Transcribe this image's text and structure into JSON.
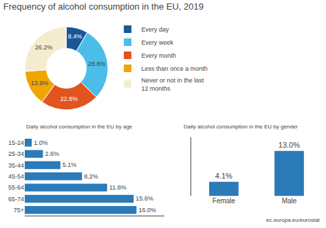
{
  "chart_data": [
    {
      "type": "pie",
      "title": "Frequency of alcohol consumption in the EU, 2019",
      "categories": [
        "Every day",
        "Every week",
        "Every month",
        "Less than once a month",
        "Never or not in the last\n12 months"
      ],
      "values": [
        8.4,
        28.8,
        22.8,
        13.9,
        26.2
      ],
      "value_labels": [
        "8.4%",
        "28.8%",
        "22.8%",
        "13.9%",
        "26.2%"
      ],
      "data_labels": true,
      "colors": [
        "#1a5799",
        "#4bbde8",
        "#e2541e",
        "#f0a500",
        "#f5ecd0"
      ],
      "legend": "right"
    },
    {
      "type": "bar",
      "title": "Daily alcohol consumption in the EU by age",
      "orientation": "horizontal",
      "categories": [
        "15-24",
        "25-34",
        "35-44",
        "45-54",
        "55-64",
        "65-74",
        "75+"
      ],
      "values": [
        1.0,
        2.6,
        5.1,
        8.2,
        11.8,
        15.6,
        16.0
      ],
      "value_labels": [
        "1.0%",
        "2.6%",
        "5.1%",
        "8.2%",
        "11.8%",
        "15.6%",
        "16.0%"
      ],
      "data_labels": true,
      "color": "#2b7bb9",
      "xlim": [
        0,
        20
      ],
      "tick_labels": "y"
    },
    {
      "type": "bar",
      "title": "Daily alcohol consumption in the EU by gender",
      "categories": [
        "Female",
        "Male"
      ],
      "values": [
        4.1,
        13.0
      ],
      "value_labels": [
        "4.1%",
        "13.0%"
      ],
      "data_labels": true,
      "color": "#2b7bb9",
      "ylim": [
        0,
        17
      ],
      "tick_labels": "x",
      "annotations": [
        "ec.europa.eu/eurostat"
      ]
    }
  ]
}
